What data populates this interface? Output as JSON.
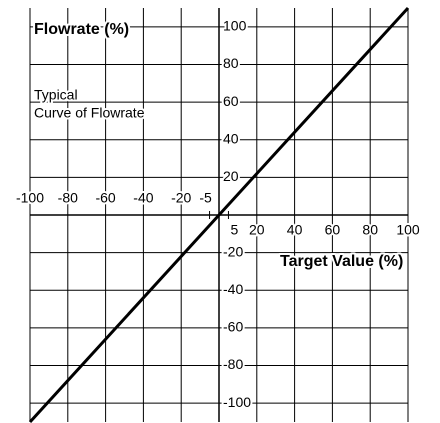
{
  "chart_data": {
    "type": "line",
    "title": "Flowrate (%)",
    "annotation": [
      "Typical",
      "Curve of Flowrate"
    ],
    "x_label": "Target Value (%)",
    "x": [
      -100,
      100
    ],
    "series": [
      {
        "color": "#000000",
        "values": [
          -110,
          110
        ]
      }
    ],
    "xlim": [
      -100,
      100
    ],
    "ylim": [
      -110,
      110
    ],
    "xticks": [
      -100,
      -80,
      -60,
      -40,
      -20,
      20,
      40,
      60,
      80,
      100
    ],
    "xticks_minor": [
      -5,
      5
    ],
    "yticks": [
      -100,
      -80,
      -60,
      -40,
      -20,
      20,
      40,
      60,
      80,
      100
    ],
    "grid": true
  }
}
